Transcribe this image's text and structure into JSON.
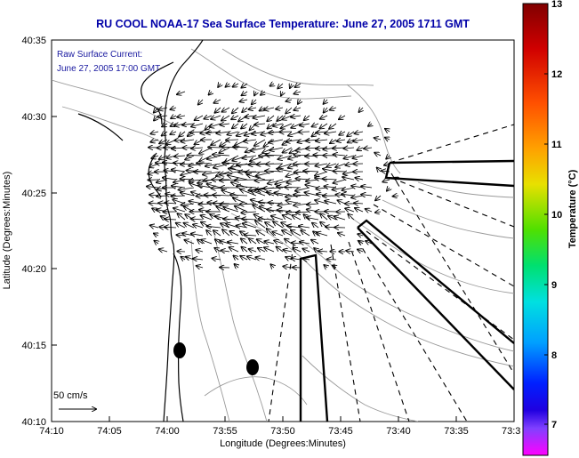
{
  "chart_data": {
    "type": "vector-field-map",
    "title": "RU COOL  NOAA-17  Sea Surface Temperature:  June 27, 2005 1711 GMT",
    "xlabel": "Longitude (Degrees:Minutes)",
    "ylabel": "Latitude (Degrees:Minutes)",
    "annotation": [
      "Raw Surface Current:",
      "June 27, 2005 17:00 GMT"
    ],
    "scale_label": "50 cm/s",
    "x_ticks": [
      "74:10",
      "74:05",
      "74:00",
      "73:55",
      "73:50",
      "73:45",
      "73:40",
      "73:35",
      "73:3"
    ],
    "y_ticks": [
      "40:35",
      "40:30",
      "40:25",
      "40:20",
      "40:15",
      "40:10"
    ],
    "xlim": [
      -74.1667,
      -73.5
    ],
    "ylim": [
      40.1667,
      40.5833
    ],
    "colorbar": {
      "label": "Temperature (°C)",
      "ticks": [
        "13",
        "12",
        "11",
        "10",
        "9",
        "8",
        "7"
      ],
      "range": [
        6.4,
        13
      ]
    },
    "current_center": [
      -73.87,
      40.43
    ],
    "buoys": [
      [
        -73.98,
        40.245
      ],
      [
        -73.875,
        40.222
      ]
    ]
  }
}
